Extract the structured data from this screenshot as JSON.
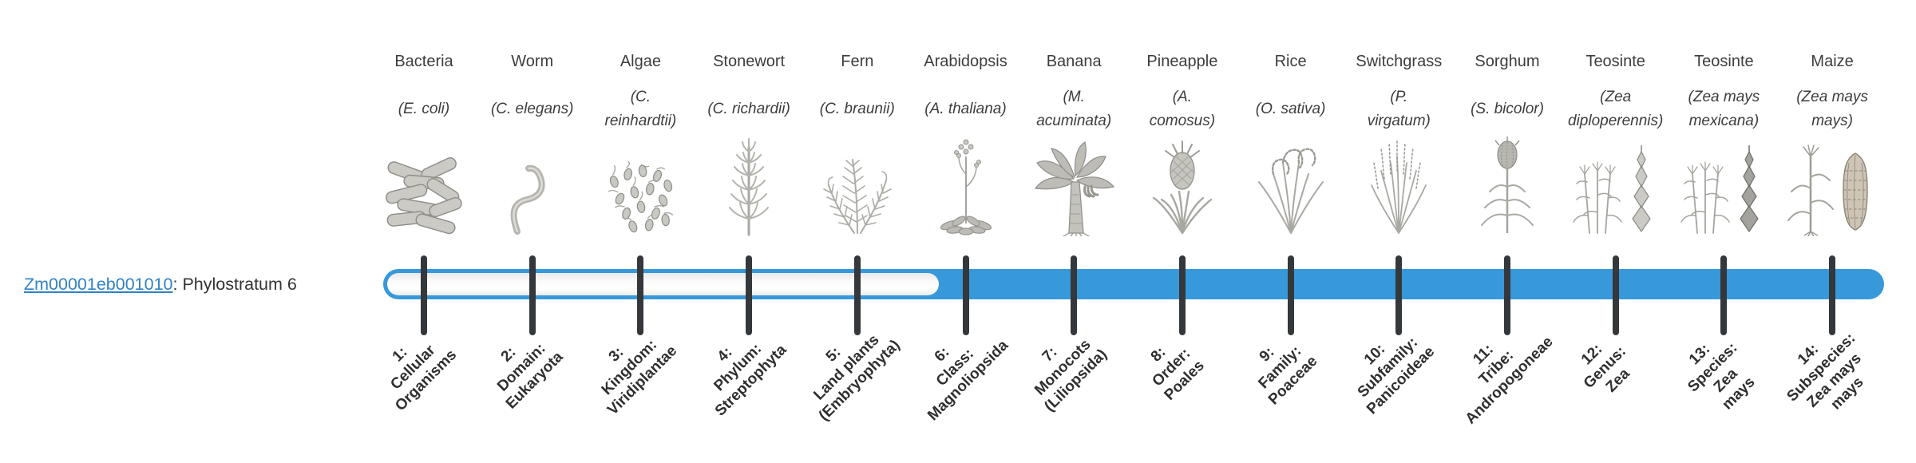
{
  "gene": {
    "id": "Zm00001eb001010",
    "suffix": ": Phylostratum 6",
    "phylostratum": 6
  },
  "timeline": {
    "bar": {
      "total_strata": 14,
      "filled_from_stratum": 6,
      "fill_color": "#3798DA",
      "track_color": "#fbfbfb",
      "tick_color": "#35383a"
    },
    "organisms": [
      {
        "name": "Bacteria",
        "sci": "(E. coli)",
        "icon": "bacteria"
      },
      {
        "name": "Worm",
        "sci": "(C. elegans)",
        "icon": "worm"
      },
      {
        "name": "Algae",
        "sci": "(C.\nreinhardtii)",
        "icon": "algae"
      },
      {
        "name": "Stonewort",
        "sci": "(C. richardii)",
        "icon": "stonewort"
      },
      {
        "name": "Fern",
        "sci": "(C. braunii)",
        "icon": "fern"
      },
      {
        "name": "Arabidopsis",
        "sci": "(A. thaliana)",
        "icon": "arabidopsis"
      },
      {
        "name": "Banana",
        "sci": "(M.\nacuminata)",
        "icon": "banana"
      },
      {
        "name": "Pineapple",
        "sci": "(A.\ncomosus)",
        "icon": "pineapple"
      },
      {
        "name": "Rice",
        "sci": "(O. sativa)",
        "icon": "rice"
      },
      {
        "name": "Switchgrass",
        "sci": "(P.\nvirgatum)",
        "icon": "switchgrass"
      },
      {
        "name": "Sorghum",
        "sci": "(S. bicolor)",
        "icon": "sorghum"
      },
      {
        "name": "Teosinte",
        "sci": "(Zea\ndiploperennis)",
        "icon": "teosinte"
      },
      {
        "name": "Teosinte",
        "sci": "(Zea mays\nmexicana)",
        "icon": "teosinte-dark"
      },
      {
        "name": "Maize",
        "sci": "(Zea mays\nmays)",
        "icon": "maize"
      }
    ],
    "strata": [
      {
        "label": "1:\nCellular\nOrganisms"
      },
      {
        "label": "2:\nDomain:\nEukaryota"
      },
      {
        "label": "3:\nKingdom:\nViridiplantae"
      },
      {
        "label": "4:\nPhylum:\nStreptophyta"
      },
      {
        "label": "5:\nLand plants\n(Embryophyta)"
      },
      {
        "label": "6:\nClass:\nMagnoliopsida"
      },
      {
        "label": "7:\nMonocots\n(Liliopsida)"
      },
      {
        "label": "8:\nOrder:\nPoales"
      },
      {
        "label": "9:\nFamily:\nPoaceae"
      },
      {
        "label": "10:\nSubfamily:\nPanicoideae"
      },
      {
        "label": "11:\nTribe:\nAndropogoneae"
      },
      {
        "label": "12:\nGenus:\nZea"
      },
      {
        "label": "13:\nSpecies:\nZea\nmays"
      },
      {
        "label": "14:\nSubspecies:\nZea mays\nmays"
      }
    ]
  },
  "colors": {
    "accent_blue": "#3798DA",
    "link_blue": "#3183c4",
    "tick_dark": "#35383a",
    "text_dark": "#333333"
  }
}
